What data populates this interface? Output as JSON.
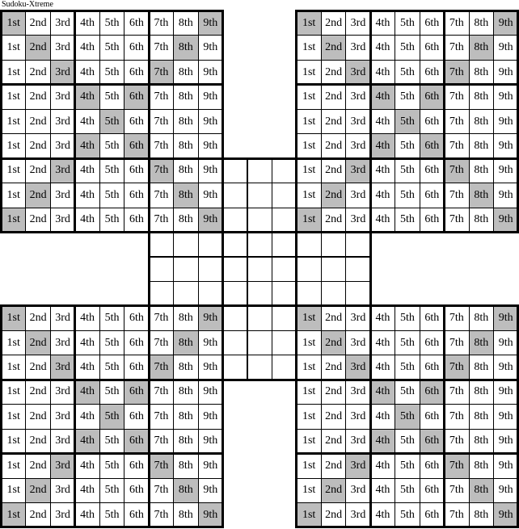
{
  "title": "Sudoku-Xtreme",
  "labels": [
    "1st",
    "2nd",
    "3rd",
    "4th",
    "5th",
    "6th",
    "7th",
    "8th",
    "9th"
  ],
  "shade_color": "#bdbdbd",
  "shaded_columns_by_row": [
    [
      0,
      8
    ],
    [
      1,
      7
    ],
    [
      2,
      6
    ],
    [
      3,
      5
    ],
    [
      4
    ],
    [
      3,
      5
    ],
    [
      2,
      6
    ],
    [
      1,
      7
    ],
    [
      0,
      8
    ]
  ],
  "grids": [
    {
      "name": "center-grid",
      "filled": false
    },
    {
      "name": "top-left-grid",
      "filled": true
    },
    {
      "name": "top-right-grid",
      "filled": true
    },
    {
      "name": "bottom-left-grid",
      "filled": true
    },
    {
      "name": "bottom-right-grid",
      "filled": true
    }
  ]
}
